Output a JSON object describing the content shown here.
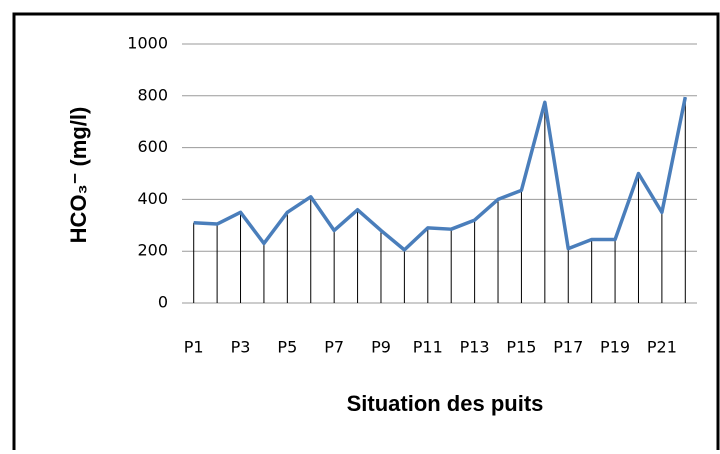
{
  "chart_data": {
    "type": "line",
    "x_label": "Situation des puits",
    "y_label": "HCO₃⁻  (mg/l)",
    "categories": [
      "P1",
      null,
      "P3",
      null,
      "P5",
      null,
      "P7",
      null,
      "P9",
      null,
      "P11",
      null,
      "P13",
      null,
      "P15",
      null,
      "P17",
      null,
      "P19",
      null,
      "P21",
      null
    ],
    "series": [
      {
        "color": "#4a7ebb",
        "values": [
          310,
          305,
          350,
          230,
          350,
          410,
          280,
          360,
          280,
          205,
          290,
          285,
          320,
          400,
          435,
          775,
          210,
          245,
          245,
          500,
          350,
          795
        ]
      }
    ],
    "ylim": [
      0,
      1000
    ],
    "yticks": [
      0,
      200,
      400,
      600,
      800,
      1000
    ],
    "grid": true,
    "drop_lines": true
  }
}
